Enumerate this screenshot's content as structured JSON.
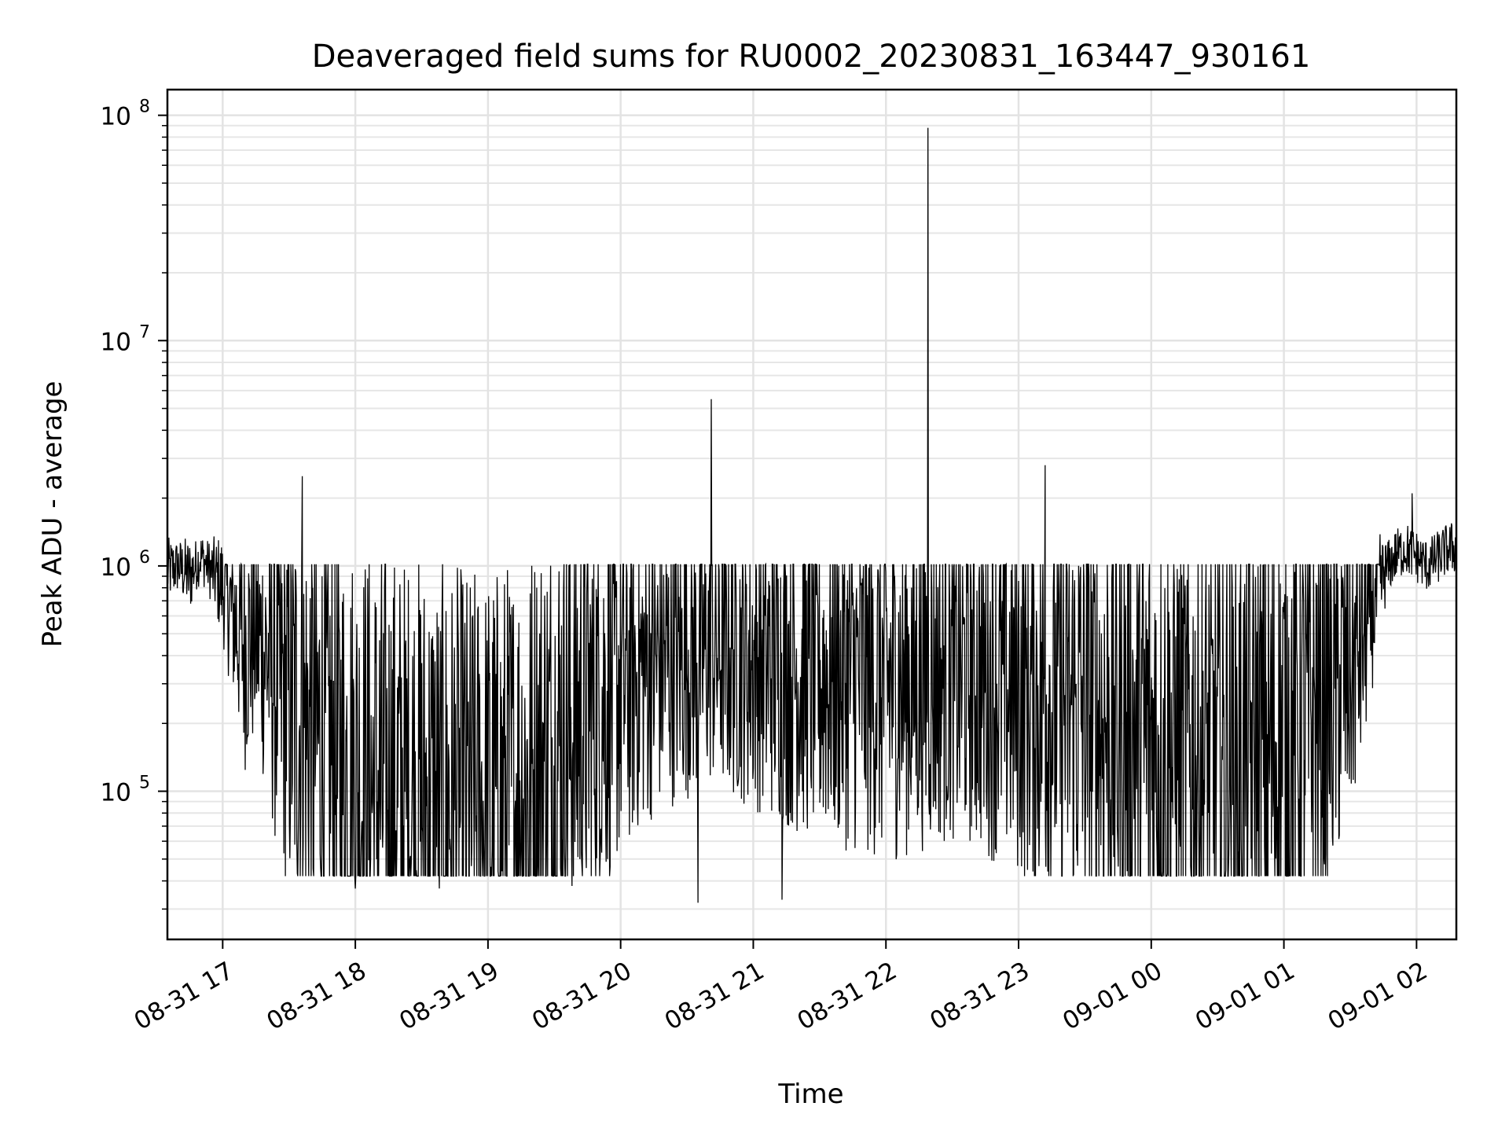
{
  "chart_data": {
    "type": "line",
    "title": "Deaveraged field sums for RU0002_20230831_163447_930161",
    "xlabel": "Time",
    "ylabel": "Peak ADU - average",
    "x_axis": "time",
    "xlim": [
      "2023-08-31 16:35",
      "2023-09-01 02:18"
    ],
    "y_scale": "log",
    "ylim": [
      22000,
      130000000
    ],
    "grid": true,
    "legend": "none",
    "line_color": "#000000",
    "x_ticks": [
      {
        "value": "2023-08-31 17:00",
        "label": "08-31 17"
      },
      {
        "value": "2023-08-31 18:00",
        "label": "08-31 18"
      },
      {
        "value": "2023-08-31 19:00",
        "label": "08-31 19"
      },
      {
        "value": "2023-08-31 20:00",
        "label": "08-31 20"
      },
      {
        "value": "2023-08-31 21:00",
        "label": "08-31 21"
      },
      {
        "value": "2023-08-31 22:00",
        "label": "08-31 22"
      },
      {
        "value": "2023-08-31 23:00",
        "label": "08-31 23"
      },
      {
        "value": "2023-09-01 00:00",
        "label": "09-01 00"
      },
      {
        "value": "2023-09-01 01:00",
        "label": "09-01 01"
      },
      {
        "value": "2023-09-01 02:00",
        "label": "09-01 02"
      }
    ],
    "y_ticks": [
      {
        "value": 100000,
        "base": "10",
        "exp": "5"
      },
      {
        "value": 1000000,
        "base": "10",
        "exp": "6"
      },
      {
        "value": 10000000,
        "base": "10",
        "exp": "7"
      },
      {
        "value": 100000000,
        "base": "10",
        "exp": "8"
      }
    ],
    "series": [
      {
        "x": [
          "2023-08-31 16:35",
          "2023-08-31 16:40",
          "2023-08-31 16:45",
          "2023-08-31 16:50",
          "2023-08-31 16:55",
          "2023-08-31 17:00",
          "2023-08-31 17:05",
          "2023-08-31 17:10",
          "2023-08-31 17:15",
          "2023-08-31 17:20",
          "2023-08-31 17:25",
          "2023-08-31 17:30",
          "2023-08-31 17:35",
          "2023-08-31 17:40",
          "2023-08-31 17:45",
          "2023-08-31 17:50",
          "2023-08-31 17:55",
          "2023-08-31 18:00",
          "2023-08-31 18:10",
          "2023-08-31 18:20",
          "2023-08-31 18:30",
          "2023-08-31 18:40",
          "2023-08-31 18:50",
          "2023-08-31 19:00",
          "2023-08-31 19:10",
          "2023-08-31 19:20",
          "2023-08-31 19:30",
          "2023-08-31 19:40",
          "2023-08-31 19:50",
          "2023-08-31 20:00",
          "2023-08-31 20:10",
          "2023-08-31 20:20",
          "2023-08-31 20:30",
          "2023-08-31 20:35",
          "2023-08-31 20:40",
          "2023-08-31 20:50",
          "2023-08-31 21:00",
          "2023-08-31 21:10",
          "2023-08-31 21:15",
          "2023-08-31 21:20",
          "2023-08-31 21:30",
          "2023-08-31 21:40",
          "2023-08-31 21:50",
          "2023-08-31 22:00",
          "2023-08-31 22:10",
          "2023-08-31 22:20",
          "2023-08-31 22:30",
          "2023-08-31 22:40",
          "2023-08-31 22:50",
          "2023-08-31 23:00",
          "2023-08-31 23:10",
          "2023-08-31 23:20",
          "2023-08-31 23:30",
          "2023-08-31 23:40",
          "2023-08-31 23:50",
          "2023-09-01 00:00",
          "2023-09-01 00:10",
          "2023-09-01 00:20",
          "2023-09-01 00:30",
          "2023-09-01 00:40",
          "2023-09-01 00:50",
          "2023-09-01 01:00",
          "2023-09-01 01:10",
          "2023-09-01 01:20",
          "2023-09-01 01:30",
          "2023-09-01 01:35",
          "2023-09-01 01:40",
          "2023-09-01 01:45",
          "2023-09-01 01:50",
          "2023-09-01 01:55",
          "2023-09-01 02:00",
          "2023-09-01 02:05",
          "2023-09-01 02:10",
          "2023-09-01 02:15"
        ],
        "y": [
          950000,
          1000000,
          900000,
          1100000,
          950000,
          800000,
          600000,
          450000,
          500000,
          400000,
          300000,
          250000,
          200000,
          180000,
          150000,
          130000,
          120000,
          110000,
          100000,
          95000,
          90000,
          85000,
          80000,
          80000,
          90000,
          110000,
          150000,
          200000,
          250000,
          300000,
          350000,
          380000,
          400000,
          400000,
          420000,
          400000,
          380000,
          360000,
          350000,
          340000,
          330000,
          320000,
          310000,
          300000,
          310000,
          320000,
          330000,
          320000,
          300000,
          280000,
          260000,
          240000,
          220000,
          200000,
          180000,
          160000,
          150000,
          140000,
          130000,
          130000,
          140000,
          160000,
          200000,
          250000,
          350000,
          450000,
          650000,
          900000,
          1100000,
          1200000,
          1100000,
          1000000,
          1100000,
          1200000
        ]
      }
    ],
    "spikes": [
      {
        "x": "2023-08-31 17:36",
        "y": 2500000
      },
      {
        "x": "2023-08-31 20:41",
        "y": 5500000
      },
      {
        "x": "2023-08-31 22:19",
        "y": 88000000
      },
      {
        "x": "2023-08-31 23:12",
        "y": 2800000
      },
      {
        "x": "2023-09-01 01:58",
        "y": 2100000
      }
    ],
    "dips": [
      {
        "x": "2023-08-31 20:35",
        "y": 32000
      },
      {
        "x": "2023-08-31 21:13",
        "y": 33000
      },
      {
        "x": "2023-08-31 18:00",
        "y": 37000
      },
      {
        "x": "2023-08-31 18:38",
        "y": 37000
      },
      {
        "x": "2023-08-31 19:38",
        "y": 38000
      }
    ]
  }
}
